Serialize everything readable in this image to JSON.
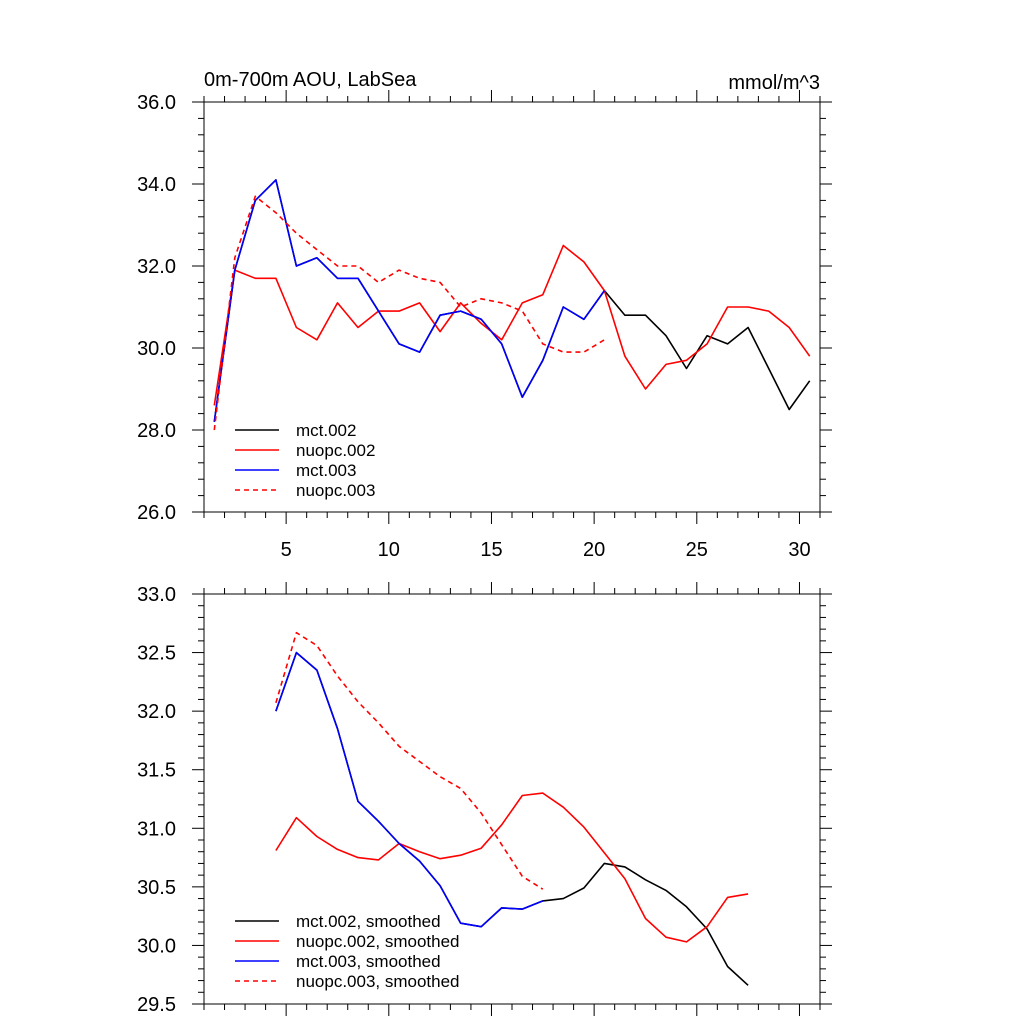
{
  "chart_data": [
    {
      "type": "line",
      "title": "0m-700m AOU, LabSea",
      "units_label": "mmol/m^3",
      "xlabel": "",
      "ylabel": "",
      "xlim": [
        1,
        31
      ],
      "ylim": [
        26.0,
        36.0
      ],
      "xticks": [
        5,
        10,
        15,
        20,
        25,
        30
      ],
      "xtick_labels": [
        "5",
        "10",
        "15",
        "20",
        "25",
        "30"
      ],
      "yticks": [
        26.0,
        28.0,
        30.0,
        32.0,
        34.0,
        36.0
      ],
      "ytick_labels": [
        "26.0",
        "28.0",
        "30.0",
        "32.0",
        "34.0",
        "36.0"
      ],
      "legend_position": "lower-left",
      "series": [
        {
          "name": "mct.002",
          "color": "#000000",
          "dash": "solid",
          "x": [
            1.5,
            2.5,
            3.5,
            4.5,
            5.5,
            6.5,
            7.5,
            8.5,
            9.5,
            10.5,
            11.5,
            12.5,
            13.5,
            14.5,
            15.5,
            16.5,
            17.5,
            18.5,
            19.5,
            20.5,
            21.5,
            22.5,
            23.5,
            24.5,
            25.5,
            26.5,
            27.5,
            28.5,
            29.5,
            30.5
          ],
          "values": [
            28.2,
            31.9,
            33.6,
            34.1,
            32.0,
            32.2,
            31.7,
            31.7,
            30.9,
            30.1,
            29.9,
            30.8,
            30.9,
            30.7,
            30.1,
            28.8,
            29.7,
            31.0,
            30.7,
            31.4,
            30.8,
            30.8,
            30.3,
            29.5,
            30.3,
            30.1,
            30.5,
            29.5,
            28.5,
            29.2
          ]
        },
        {
          "name": "nuopc.002",
          "color": "#ff0000",
          "dash": "solid",
          "x": [
            1.5,
            2.5,
            3.5,
            4.5,
            5.5,
            6.5,
            7.5,
            8.5,
            9.5,
            10.5,
            11.5,
            12.5,
            13.5,
            14.5,
            15.5,
            16.5,
            17.5,
            18.5,
            19.5,
            20.5,
            21.5,
            22.5,
            23.5,
            24.5,
            25.5,
            26.5,
            27.5,
            28.5,
            29.5,
            30.5
          ],
          "values": [
            28.6,
            31.9,
            31.7,
            31.7,
            30.5,
            30.2,
            31.1,
            30.5,
            30.9,
            30.9,
            31.1,
            30.4,
            31.1,
            30.6,
            30.2,
            31.1,
            31.3,
            32.5,
            32.1,
            31.4,
            29.8,
            29.0,
            29.6,
            29.7,
            30.1,
            31.0,
            31.0,
            30.9,
            30.5,
            29.8
          ]
        },
        {
          "name": "mct.003",
          "color": "#0000ff",
          "dash": "solid",
          "x": [
            1.5,
            2.5,
            3.5,
            4.5,
            5.5,
            6.5,
            7.5,
            8.5,
            9.5,
            10.5,
            11.5,
            12.5,
            13.5,
            14.5,
            15.5,
            16.5,
            17.5,
            18.5,
            19.5,
            20.5
          ],
          "values": [
            28.2,
            31.9,
            33.6,
            34.1,
            32.0,
            32.2,
            31.7,
            31.7,
            30.9,
            30.1,
            29.9,
            30.8,
            30.9,
            30.7,
            30.1,
            28.8,
            29.7,
            31.0,
            30.7,
            31.4
          ]
        },
        {
          "name": "nuopc.003",
          "color": "#ff0000",
          "dash": "dashed",
          "x": [
            1.5,
            2.5,
            3.5,
            4.5,
            5.5,
            6.5,
            7.5,
            8.5,
            9.5,
            10.5,
            11.5,
            12.5,
            13.5,
            14.5,
            15.5,
            16.5,
            17.5,
            18.5,
            19.5,
            20.5
          ],
          "values": [
            28.0,
            32.2,
            33.7,
            33.3,
            32.8,
            32.4,
            32.0,
            32.0,
            31.6,
            31.9,
            31.7,
            31.6,
            31.0,
            31.2,
            31.1,
            30.9,
            30.1,
            29.9,
            29.9,
            30.2
          ]
        }
      ]
    },
    {
      "type": "line",
      "title": "",
      "xlabel": "",
      "ylabel": "",
      "xlim": [
        1,
        31
      ],
      "ylim": [
        29.5,
        33.0
      ],
      "xticks": [
        5,
        10,
        15,
        20,
        25,
        30
      ],
      "yticks": [
        29.5,
        30.0,
        30.5,
        31.0,
        31.5,
        32.0,
        32.5,
        33.0
      ],
      "ytick_labels": [
        "29.5",
        "30.0",
        "30.5",
        "31.0",
        "31.5",
        "32.0",
        "32.5",
        "33.0"
      ],
      "legend_position": "lower-left",
      "series": [
        {
          "name": "mct.002, smoothed",
          "color": "#000000",
          "dash": "solid",
          "x": [
            4.5,
            5.5,
            6.5,
            7.5,
            8.5,
            9.5,
            10.5,
            11.5,
            12.5,
            13.5,
            14.5,
            15.5,
            16.5,
            17.5,
            18.5,
            19.5,
            20.5,
            21.5,
            22.5,
            23.5,
            24.5,
            25.5,
            26.5,
            27.5
          ],
          "values": [
            32.0,
            32.5,
            32.35,
            31.85,
            31.23,
            31.06,
            30.87,
            30.72,
            30.51,
            30.19,
            30.16,
            30.32,
            30.31,
            30.38,
            30.4,
            30.49,
            30.7,
            30.67,
            30.56,
            30.47,
            30.33,
            30.14,
            29.82,
            29.66
          ]
        },
        {
          "name": "nuopc.002, smoothed",
          "color": "#ff0000",
          "dash": "solid",
          "x": [
            4.5,
            5.5,
            6.5,
            7.5,
            8.5,
            9.5,
            10.5,
            11.5,
            12.5,
            13.5,
            14.5,
            15.5,
            16.5,
            17.5,
            18.5,
            19.5,
            20.5,
            21.5,
            22.5,
            23.5,
            24.5,
            25.5,
            26.5,
            27.5
          ],
          "values": [
            30.81,
            31.09,
            30.93,
            30.82,
            30.75,
            30.73,
            30.87,
            30.8,
            30.74,
            30.77,
            30.83,
            31.03,
            31.28,
            31.3,
            31.18,
            31.01,
            30.79,
            30.57,
            30.23,
            30.07,
            30.03,
            30.16,
            30.41,
            30.44
          ]
        },
        {
          "name": "mct.003, smoothed",
          "color": "#0000ff",
          "dash": "solid",
          "x": [
            4.5,
            5.5,
            6.5,
            7.5,
            8.5,
            9.5,
            10.5,
            11.5,
            12.5,
            13.5,
            14.5,
            15.5,
            16.5,
            17.5
          ],
          "values": [
            32.0,
            32.5,
            32.35,
            31.85,
            31.23,
            31.06,
            30.87,
            30.72,
            30.51,
            30.19,
            30.16,
            30.32,
            30.31,
            30.38
          ]
        },
        {
          "name": "nuopc.003, smoothed",
          "color": "#ff0000",
          "dash": "dashed",
          "x": [
            4.5,
            5.5,
            6.5,
            7.5,
            8.5,
            9.5,
            10.5,
            11.5,
            12.5,
            13.5,
            14.5,
            15.5,
            16.5,
            17.5
          ],
          "values": [
            32.07,
            32.67,
            32.56,
            32.3,
            32.08,
            31.9,
            31.7,
            31.57,
            31.44,
            31.34,
            31.13,
            30.86,
            30.59,
            30.48
          ]
        }
      ]
    }
  ]
}
